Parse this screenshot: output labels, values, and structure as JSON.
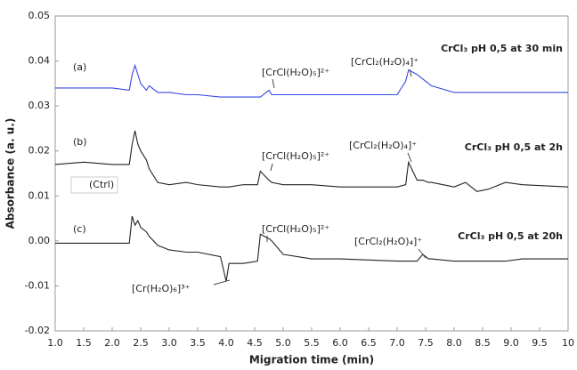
{
  "chart_data": {
    "type": "line",
    "x_label": "Migration time (min)",
    "y_label": "Absorbance (a. u.)",
    "xlim": [
      1,
      10
    ],
    "ylim": [
      -0.02,
      0.05
    ],
    "xticks": [
      {
        "value": 1,
        "label": "1.0"
      },
      1.5,
      {
        "value": 2,
        "label": "2.0"
      },
      2.5,
      {
        "value": 3,
        "label": "3.0"
      },
      3.5,
      {
        "value": 4,
        "label": "4.0"
      },
      4.5,
      {
        "value": 5,
        "label": "5.0"
      },
      5.5,
      {
        "value": 6,
        "label": "6.0"
      },
      6.5,
      {
        "value": 7,
        "label": "7.0"
      },
      7.5,
      {
        "value": 8,
        "label": "8.0"
      },
      8.5,
      {
        "value": 9,
        "label": "9.0"
      },
      9.5,
      10
    ],
    "yticks": [
      0.05,
      0.04,
      0.03,
      0.02,
      0.01,
      {
        "value": 0,
        "label": "0.00"
      },
      -0.01,
      -0.02
    ],
    "grid": false,
    "x": [
      1,
      1.5,
      2,
      2.3,
      2.35,
      2.4,
      2.45,
      2.5,
      2.6,
      2.65,
      2.8,
      3,
      3.3,
      3.5,
      3.9,
      4,
      4.05,
      4.3,
      4.55,
      4.6,
      4.75,
      4.8,
      5,
      5.5,
      6,
      7,
      7.15,
      7.2,
      7.35,
      7.45,
      7.55,
      7.6,
      8,
      8.2,
      8.4,
      8.6,
      8.9,
      9.2,
      10
    ],
    "series": [
      {
        "color": "#3347e0",
        "values": [
          0.034,
          0.034,
          0.034,
          0.0335,
          0.037,
          0.039,
          0.037,
          0.035,
          0.0335,
          0.0345,
          0.033,
          0.033,
          0.0325,
          0.0325,
          0.032,
          0.032,
          0.032,
          0.032,
          0.032,
          0.032,
          0.0335,
          0.0325,
          0.0325,
          0.0325,
          0.0325,
          0.0325,
          0.0355,
          0.038,
          0.037,
          0.036,
          0.035,
          0.0345,
          0.033,
          0.033,
          0.033,
          0.033,
          0.033,
          0.033,
          0.033
        ]
      },
      {
        "color": "#222222",
        "values": [
          0.017,
          0.0175,
          0.017,
          0.017,
          0.0215,
          0.0245,
          0.0215,
          0.02,
          0.018,
          0.016,
          0.013,
          0.0125,
          0.013,
          0.0125,
          0.012,
          0.012,
          0.012,
          0.0125,
          0.0125,
          0.0155,
          0.0135,
          0.013,
          0.0125,
          0.0125,
          0.012,
          0.012,
          0.0125,
          0.0175,
          0.0135,
          0.0135,
          0.013,
          0.013,
          0.012,
          0.013,
          0.011,
          0.0115,
          0.013,
          0.0125,
          0.012
        ]
      },
      {
        "color": "#222222",
        "values": [
          -0.0005,
          -0.0005,
          -0.0005,
          -0.0005,
          0.0055,
          0.0035,
          0.0045,
          0.003,
          0.002,
          0.001,
          -0.001,
          -0.002,
          -0.0025,
          -0.0025,
          -0.0035,
          -0.009,
          -0.005,
          -0.005,
          -0.0045,
          0.0015,
          0.0005,
          0,
          -0.003,
          -0.004,
          -0.004,
          -0.0045,
          -0.0045,
          -0.0045,
          -0.0045,
          -0.003,
          -0.004,
          -0.004,
          -0.0045,
          -0.0045,
          -0.0045,
          -0.0045,
          -0.0045,
          -0.004,
          -0.004
        ]
      }
    ],
    "annotations": [
      {
        "text": "(a)",
        "color": "#222222"
      },
      {
        "text": "[CrCl(H₂O)₅]²⁺",
        "color": "#1e9a2e"
      },
      {
        "text": "[CrCl₂(H₂O)₄]⁺",
        "color": "#222222"
      },
      {
        "text": "CrCl₃ pH 0,5 at 30 min",
        "color": "#111111"
      },
      {
        "text": "(b)",
        "color": "#222222"
      },
      {
        "text": "[CrCl(H₂O)₅]²⁺",
        "color": "#1e9a2e"
      },
      {
        "text": "[CrCl₂(H₂O)₄]⁺",
        "color": "#222222"
      },
      {
        "text": "CrCl₃ pH 0,5 at 2h",
        "color": "#111111"
      },
      {
        "text": "(c)",
        "color": "#222222"
      },
      {
        "text": "[CrCl(H₂O)₅]²⁺",
        "color": "#1e9a2e"
      },
      {
        "text": "[CrCl₂(H₂O)₄]⁺",
        "color": "#222222"
      },
      {
        "text": "CrCl₃ pH 0,5 at 20h",
        "color": "#111111"
      },
      {
        "text": "[Cr(H₂O)₆]³⁺",
        "color": "#2a6fb8"
      },
      {
        "text": "(Ctrl)",
        "color": "#555555"
      }
    ]
  }
}
